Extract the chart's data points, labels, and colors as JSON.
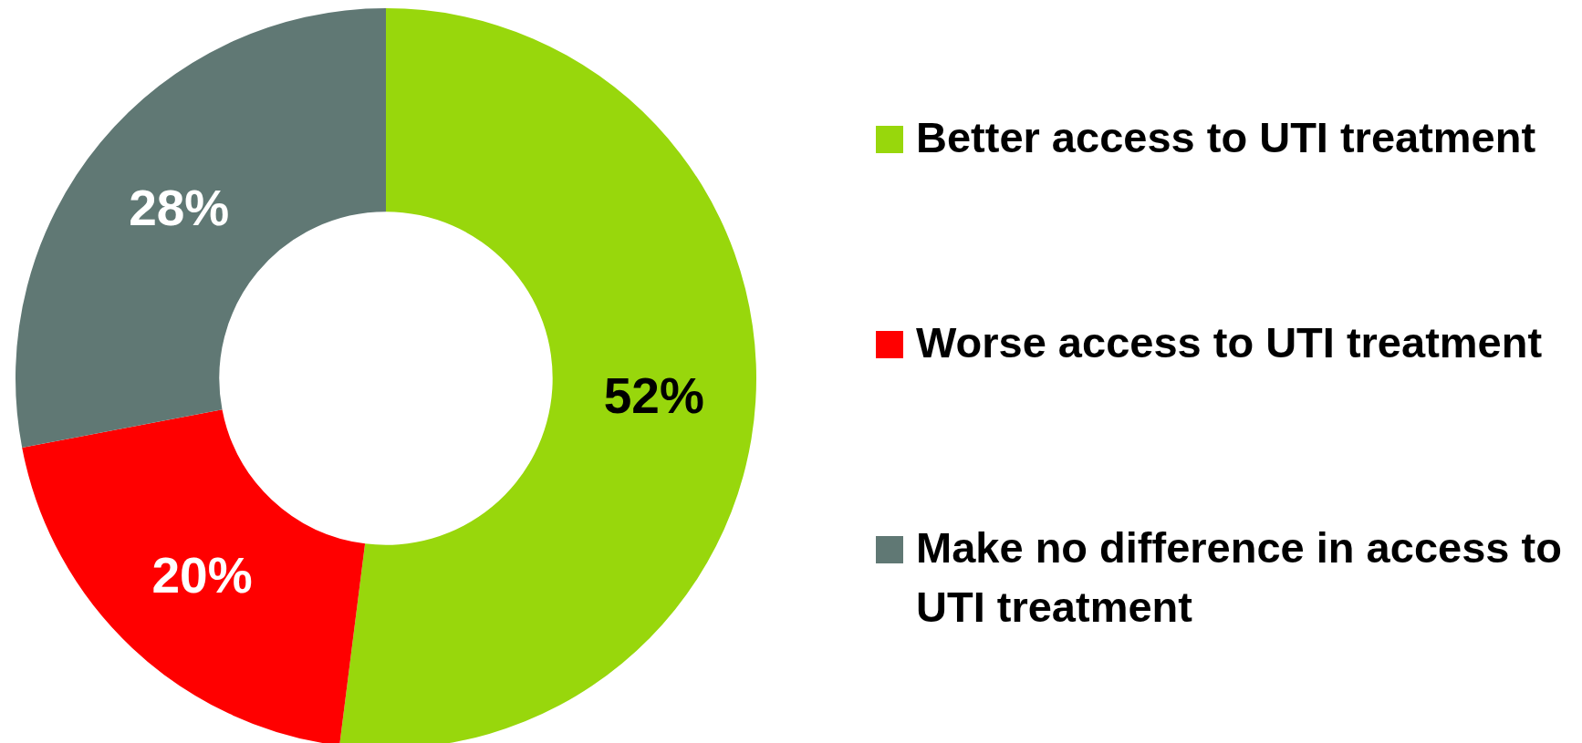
{
  "chart_data": {
    "type": "donut",
    "categories": [
      "Better access to UTI treatment",
      "Worse access to UTI treatment",
      "Make no difference in access to UTI treatment"
    ],
    "values": [
      52,
      20,
      28
    ],
    "colors": [
      "#98d70c",
      "#ff0000",
      "#607874"
    ],
    "value_labels": [
      "52%",
      "20%",
      "28%"
    ],
    "legend": "right"
  }
}
